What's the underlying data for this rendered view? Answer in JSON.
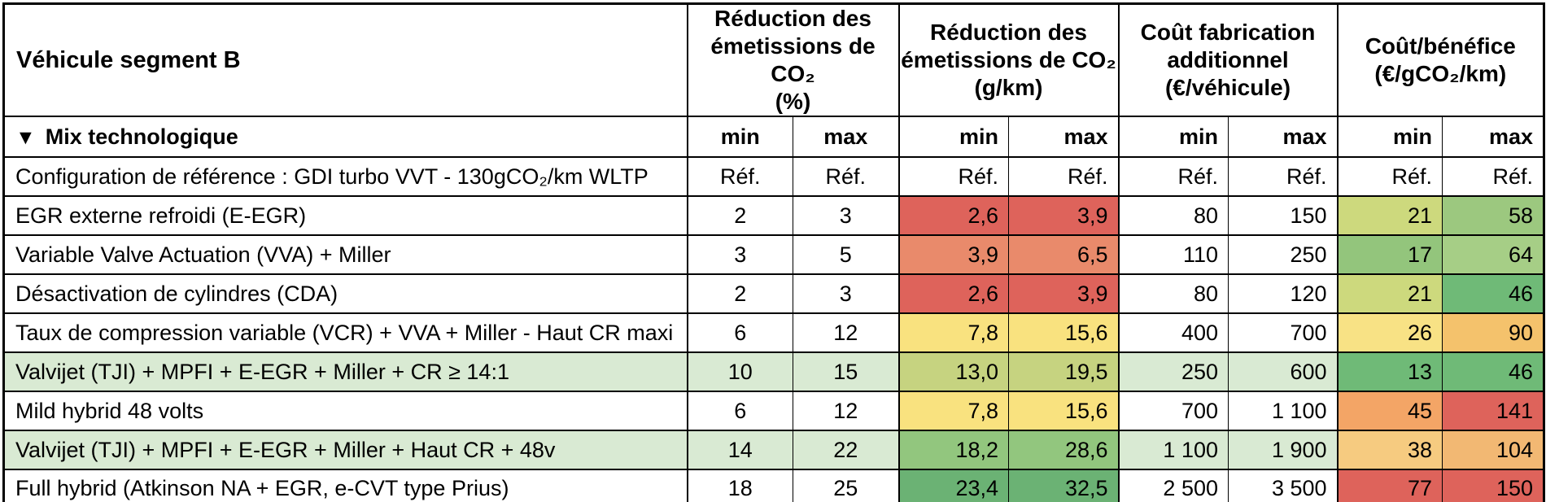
{
  "display": {
    "corner": "Véhicule segment B",
    "mix": {
      "icon": "▼",
      "label": "Mix technologique"
    },
    "group_labels": [
      "Réduction des\németissions de CO₂\n(%)",
      "Réduction des\németissions de CO₂\n(g/km)",
      "Coût fabrication\nadditionnel\n(€/véhicule)",
      "Coût/bénéfice\n(€/gCO₂/km)"
    ]
  },
  "colors": {
    "highlight_row": "#d9ead3",
    "border": "#000000",
    "red": "#de635b",
    "salmon": "#e98a6b",
    "yellow": "#f9e27f",
    "orange": "#f4c26c",
    "dark_green": "#6fba77",
    "light_green_row": "#d9ead3"
  },
  "chart_data": {
    "type": "table",
    "title": "Véhicule segment B",
    "section": "Mix technologique",
    "column_groups": [
      "Réduction des émissions de CO₂ (%)",
      "Réduction des émissions de CO₂ (g/km)",
      "Coût fabrication additionnel (€/véhicule)",
      "Coût/bénéfice (€/gCO₂/km)"
    ],
    "subcolumns": [
      "min",
      "max",
      "min",
      "max",
      "min",
      "max",
      "min",
      "max"
    ],
    "rows": [
      {
        "label": "Configuration de référence : GDI turbo VVT - 130gCO₂/km WLTP",
        "highlight": false,
        "values": [
          "Réf.",
          "Réf.",
          "Réf.",
          "Réf.",
          "Réf.",
          "Réf.",
          "Réf.",
          "Réf."
        ],
        "cell_colors": [
          null,
          null,
          null,
          null,
          null,
          null,
          null,
          null
        ]
      },
      {
        "label": "EGR externe refroidi (E-EGR)",
        "highlight": false,
        "values": [
          "2",
          "3",
          "2,6",
          "3,9",
          "80",
          "150",
          "21",
          "58"
        ],
        "cell_colors": [
          null,
          null,
          "#de635b",
          "#de635b",
          null,
          null,
          "#cdd97d",
          "#9cc87f"
        ]
      },
      {
        "label": "Variable Valve Actuation (VVA) + Miller",
        "highlight": false,
        "values": [
          "3",
          "5",
          "3,9",
          "6,5",
          "110",
          "250",
          "17",
          "64"
        ],
        "cell_colors": [
          null,
          null,
          "#e98a6b",
          "#e98a6b",
          null,
          null,
          "#93c57c",
          "#a6ce86"
        ]
      },
      {
        "label": "Désactivation de cylindres (CDA)",
        "highlight": false,
        "values": [
          "2",
          "3",
          "2,6",
          "3,9",
          "80",
          "120",
          "21",
          "46"
        ],
        "cell_colors": [
          null,
          null,
          "#de635b",
          "#de635b",
          null,
          null,
          "#cdd97d",
          "#6fba77"
        ]
      },
      {
        "label": "Taux de compression variable (VCR) + VVA + Miller - Haut CR maxi",
        "highlight": false,
        "values": [
          "6",
          "12",
          "7,8",
          "15,6",
          "400",
          "700",
          "26",
          "90"
        ],
        "cell_colors": [
          null,
          null,
          "#f9e27f",
          "#f9e27f",
          null,
          null,
          "#f8e285",
          "#f4c26c"
        ]
      },
      {
        "label": "Valvijet (TJI) + MPFI + E-EGR + Miller + CR ≥ 14:1",
        "highlight": true,
        "values": [
          "10",
          "15",
          "13,0",
          "19,5",
          "250",
          "600",
          "13",
          "46"
        ],
        "cell_colors": [
          null,
          null,
          "#c6d380",
          "#c6d380",
          null,
          null,
          "#6fba77",
          "#6fba77"
        ]
      },
      {
        "label": "Mild hybrid 48 volts",
        "highlight": false,
        "values": [
          "6",
          "12",
          "7,8",
          "15,6",
          "700",
          "1 100",
          "45",
          "141"
        ],
        "cell_colors": [
          null,
          null,
          "#f9e27f",
          "#f9e27f",
          null,
          null,
          "#f3a566",
          "#de635b"
        ]
      },
      {
        "label": "Valvijet (TJI) + MPFI + E-EGR + Miller + Haut CR + 48v",
        "highlight": true,
        "values": [
          "14",
          "22",
          "18,2",
          "28,6",
          "1 100",
          "1 900",
          "38",
          "104"
        ],
        "cell_colors": [
          null,
          null,
          "#92c67e",
          "#92c67e",
          null,
          null,
          "#f6cb80",
          "#f2b873"
        ]
      },
      {
        "label": "Full hybrid (Atkinson NA + EGR, e-CVT type Prius)",
        "highlight": false,
        "values": [
          "18",
          "25",
          "23,4",
          "32,5",
          "2 500",
          "3 500",
          "77",
          "150"
        ],
        "cell_colors": [
          null,
          null,
          "#6bb274",
          "#6bb274",
          null,
          null,
          "#de635b",
          "#de635b"
        ]
      }
    ]
  }
}
